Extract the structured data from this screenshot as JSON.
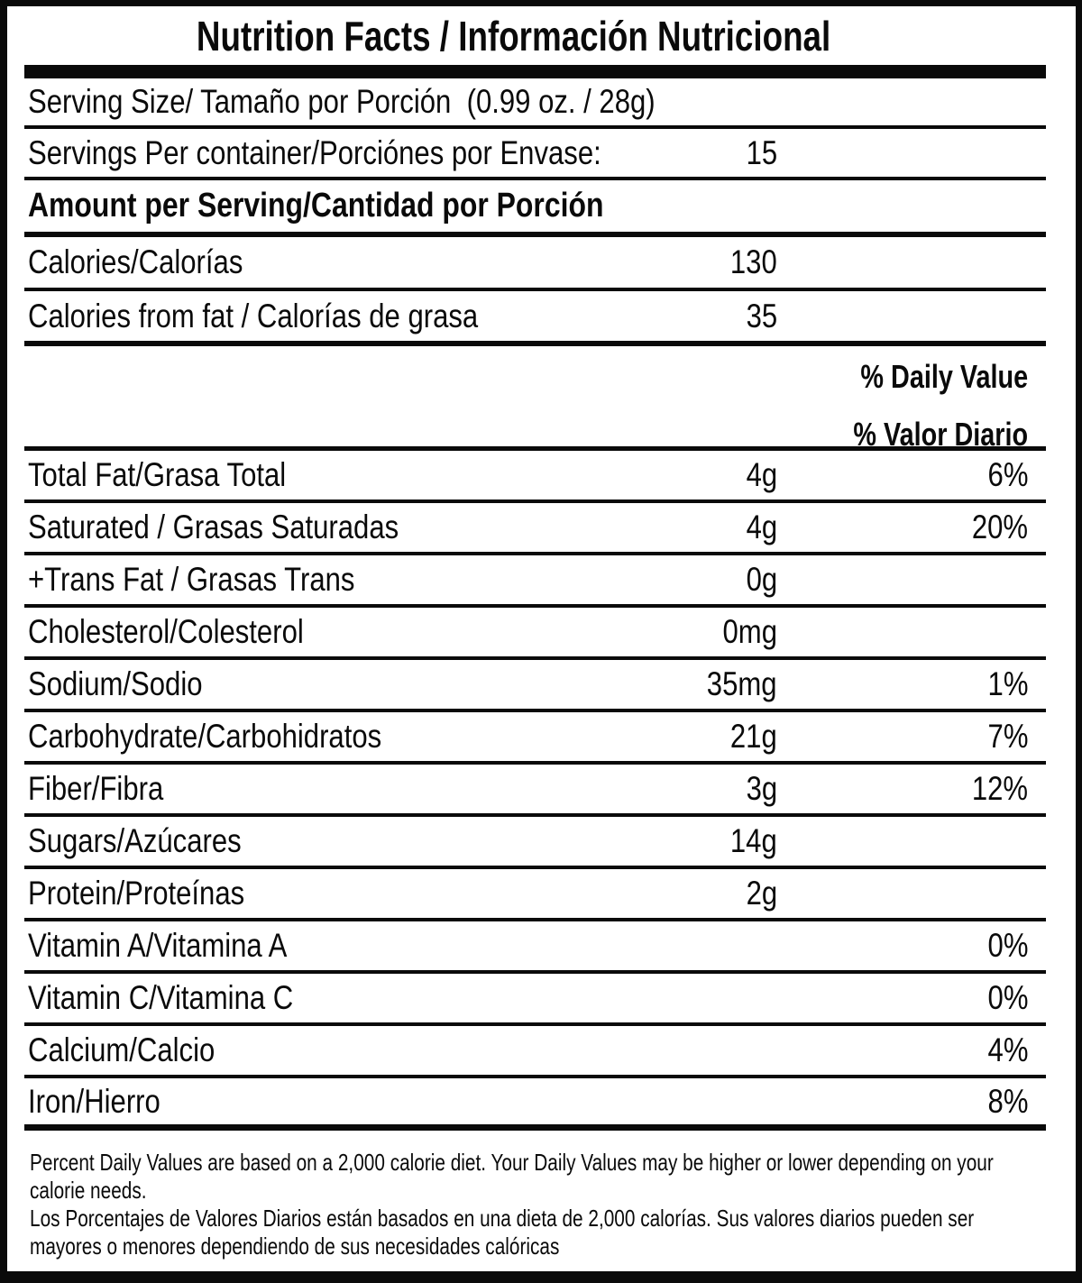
{
  "header": {
    "title": "Nutrition Facts / Información Nutricional"
  },
  "serving": {
    "size_label": "Serving Size/ Tamaño por Porción  (0.99 oz. / 28g)",
    "per_container_label": "Servings Per container/Porciónes por Envase:",
    "per_container_value": "15",
    "amount_header": "Amount per Serving/Cantidad por Porción",
    "calories_label": "Calories/Calorías",
    "calories_value": "130",
    "calories_from_fat_label": "Calories from fat / Calorías de grasa",
    "calories_from_fat_value": "35"
  },
  "daily_value": {
    "header_en": "% Daily Value",
    "header_es": "% Valor Diario"
  },
  "nutrients": [
    {
      "label": "Total Fat/Grasa Total",
      "amount": "4g",
      "daily_value": "6%"
    },
    {
      "label": "Saturated / Grasas Saturadas",
      "amount": "4g",
      "daily_value": "20%"
    },
    {
      "label": "+Trans Fat / Grasas Trans",
      "amount": "0g",
      "daily_value": ""
    },
    {
      "label": "Cholesterol/Colesterol",
      "amount": "0mg",
      "daily_value": ""
    },
    {
      "label": "Sodium/Sodio",
      "amount": "35mg",
      "daily_value": "1%"
    },
    {
      "label": "Carbohydrate/Carbohidratos",
      "amount": "21g",
      "daily_value": "7%"
    },
    {
      "label": "Fiber/Fibra",
      "amount": "3g",
      "daily_value": "12%"
    },
    {
      "label": "Sugars/Azúcares",
      "amount": "14g",
      "daily_value": ""
    },
    {
      "label": "Protein/Proteínas",
      "amount": "2g",
      "daily_value": ""
    },
    {
      "label": "Vitamin A/Vitamina A",
      "amount": "",
      "daily_value": "0%"
    },
    {
      "label": "Vitamin C/Vitamina C",
      "amount": "",
      "daily_value": "0%"
    },
    {
      "label": "Calcium/Calcio",
      "amount": "",
      "daily_value": "4%"
    },
    {
      "label": "Iron/Hierro",
      "amount": "",
      "daily_value": "8%"
    }
  ],
  "footnotes": {
    "en": [
      "Percent Daily Values are based on a 2,000 calorie diet. Your Daily Values may be higher or lower depending on your",
      "calorie needs."
    ],
    "es": [
      "Los Porcentajes de Valores Diarios están basados en una dieta de 2,000 calorías. Sus valores diarios pueden ser",
      "mayores o menores dependiendo de sus necesidades calóricas"
    ]
  }
}
